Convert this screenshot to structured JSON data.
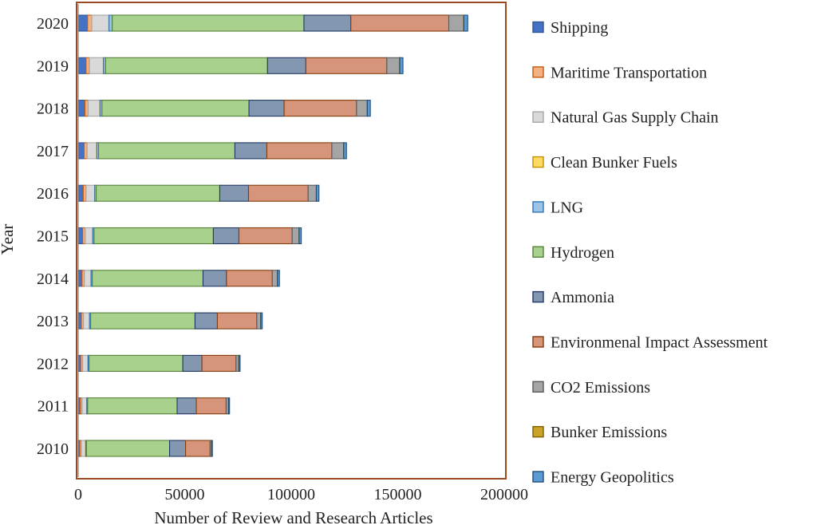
{
  "chart_data": {
    "type": "bar",
    "orientation": "horizontal",
    "stacked": true,
    "title": "",
    "xlabel": "Number of Review and Research Articles",
    "ylabel": "Year",
    "xlim": [
      0,
      200000
    ],
    "xticks": [
      "0",
      "50000",
      "100000",
      "150000",
      "200000"
    ],
    "categories": [
      "2010",
      "2011",
      "2012",
      "2013",
      "2014",
      "2015",
      "2016",
      "2017",
      "2018",
      "2019",
      "2020"
    ],
    "grid": false,
    "legend_position": "right",
    "frame_color": "#9a4a21",
    "series": [
      {
        "name": "Shipping",
        "color": "#4472c4",
        "border": "#2f5597",
        "values": [
          800,
          1000,
          1200,
          1500,
          1800,
          2100,
          2400,
          2800,
          3200,
          3700,
          4400
        ]
      },
      {
        "name": "Maritime Transportation",
        "color": "#f4b183",
        "border": "#c55a11",
        "values": [
          700,
          800,
          900,
          1000,
          1100,
          1200,
          1300,
          1400,
          1500,
          1600,
          2000
        ]
      },
      {
        "name": "Natural Gas Supply Chain",
        "color": "#d9d9d9",
        "border": "#a6a6a6",
        "values": [
          2000,
          2200,
          2500,
          2800,
          3100,
          3500,
          4000,
          4500,
          5500,
          6500,
          8000
        ]
      },
      {
        "name": "Clean Bunker Fuels",
        "color": "#ffd966",
        "border": "#bf9000",
        "values": [
          50,
          50,
          50,
          50,
          60,
          60,
          60,
          70,
          70,
          80,
          80
        ]
      },
      {
        "name": "LNG",
        "color": "#9dc3e6",
        "border": "#2e75b6",
        "values": [
          350,
          400,
          450,
          500,
          550,
          600,
          700,
          800,
          900,
          1000,
          1500
        ]
      },
      {
        "name": "Hydrogen",
        "color": "#a9d18e",
        "border": "#548235",
        "values": [
          39000,
          42000,
          44000,
          49000,
          52000,
          56000,
          58000,
          64000,
          69000,
          76000,
          90000
        ]
      },
      {
        "name": "Ammonia",
        "color": "#8497b0",
        "border": "#203864",
        "values": [
          7500,
          9000,
          9000,
          10500,
          11000,
          12000,
          13500,
          15000,
          16500,
          18000,
          22000
        ]
      },
      {
        "name": "Environmenal Impact Assessment",
        "color": "#d6957a",
        "border": "#843c0c",
        "values": [
          11500,
          14000,
          16000,
          18500,
          21500,
          25000,
          28000,
          30500,
          34000,
          38000,
          46000
        ]
      },
      {
        "name": "CO2 Emissions",
        "color": "#a5a5a5",
        "border": "#595959",
        "values": [
          700,
          1100,
          1300,
          1800,
          2400,
          3200,
          3800,
          5500,
          5000,
          6000,
          7000
        ]
      },
      {
        "name": "Bunker Emissions",
        "color": "#c9a227",
        "border": "#7f6000",
        "values": [
          50,
          50,
          50,
          50,
          60,
          60,
          60,
          70,
          70,
          80,
          80
        ]
      },
      {
        "name": "Energy Geopolitics",
        "color": "#5b9bd5",
        "border": "#1f4e79",
        "values": [
          350,
          450,
          550,
          700,
          900,
          1000,
          1200,
          1300,
          1400,
          1500,
          1800
        ]
      }
    ]
  }
}
